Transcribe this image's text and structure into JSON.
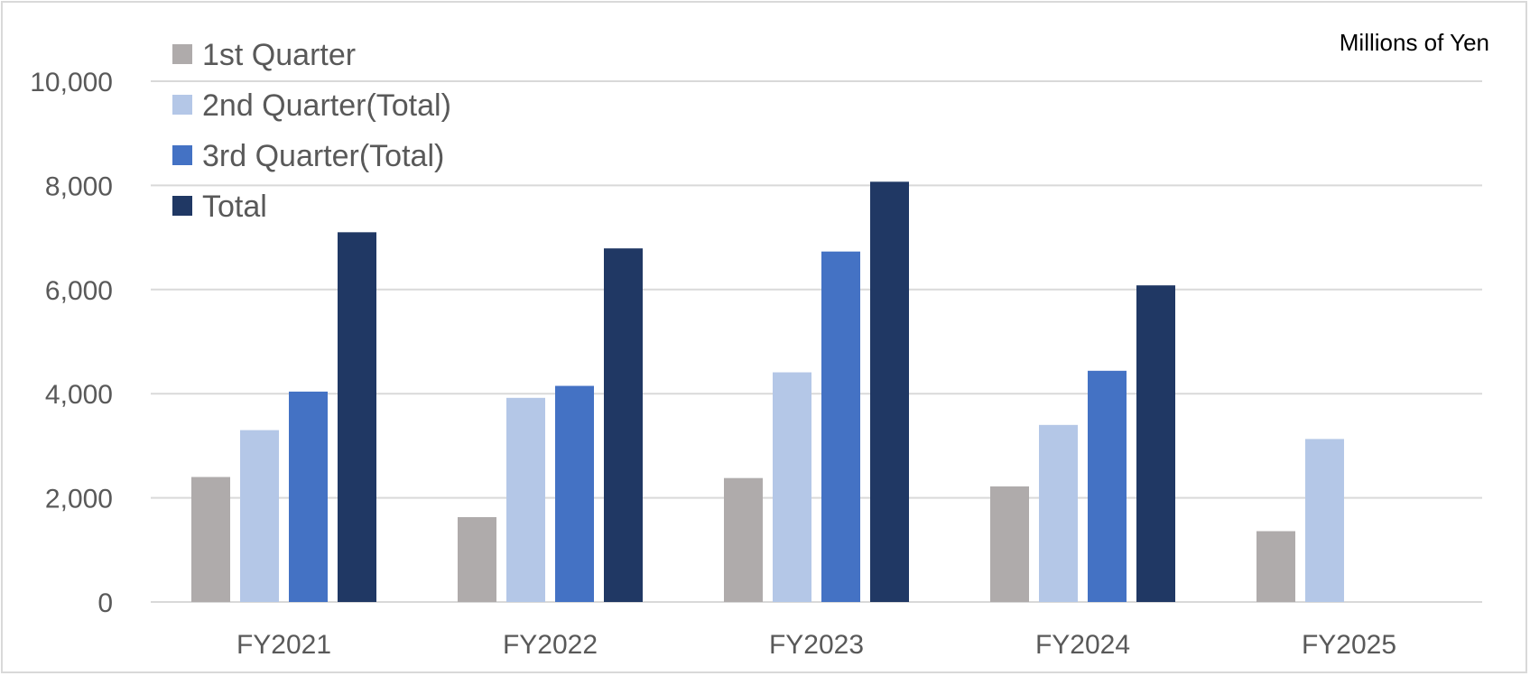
{
  "chart_data": {
    "type": "bar",
    "unit_label": "Millions of Yen",
    "categories": [
      "FY2021",
      "FY2022",
      "FY2023",
      "FY2024",
      "FY2025"
    ],
    "series": [
      {
        "name": "1st Quarter",
        "color": "#afabab",
        "values": [
          2400,
          1630,
          2380,
          2220,
          1360
        ]
      },
      {
        "name": "2nd Quarter(Total)",
        "color": "#b4c7e7",
        "values": [
          3300,
          3920,
          4410,
          3400,
          3130
        ]
      },
      {
        "name": "3rd Quarter(Total)",
        "color": "#4472c4",
        "values": [
          4040,
          4150,
          6730,
          4440,
          null
        ]
      },
      {
        "name": "Total",
        "color": "#203864",
        "values": [
          7100,
          6790,
          8070,
          6080,
          null
        ]
      }
    ],
    "yticks": [
      "0",
      "2,000",
      "4,000",
      "6,000",
      "8,000",
      "10,000"
    ],
    "ylim": [
      0,
      10000
    ],
    "grid": true,
    "legend_position": "top-left"
  }
}
